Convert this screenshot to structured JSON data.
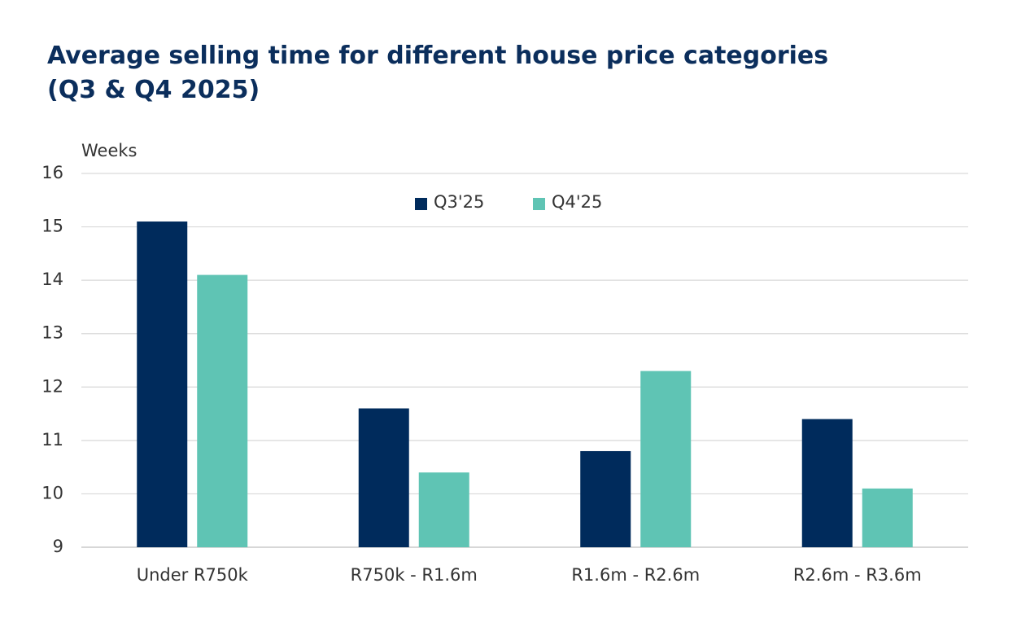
{
  "chart_data": {
    "type": "bar",
    "title": [
      "Average selling time for different house price categories",
      "(Q3 & Q4 2025)"
    ],
    "y_label": "Weeks",
    "categories": [
      "Under R750k",
      "R750k - R1.6m",
      "R1.6m - R2.6m",
      "R2.6m - R3.6m"
    ],
    "series": [
      {
        "name": "Q3'25",
        "color": "#002b5c",
        "values": [
          15.1,
          11.6,
          10.8,
          11.4
        ]
      },
      {
        "name": "Q4'25",
        "color": "#5fc4b4",
        "values": [
          14.1,
          10.4,
          12.3,
          10.1
        ]
      }
    ],
    "ylim": [
      9,
      16
    ],
    "yticks": [
      9,
      10,
      11,
      12,
      13,
      14,
      15,
      16
    ],
    "grid": true,
    "legend": "top"
  }
}
